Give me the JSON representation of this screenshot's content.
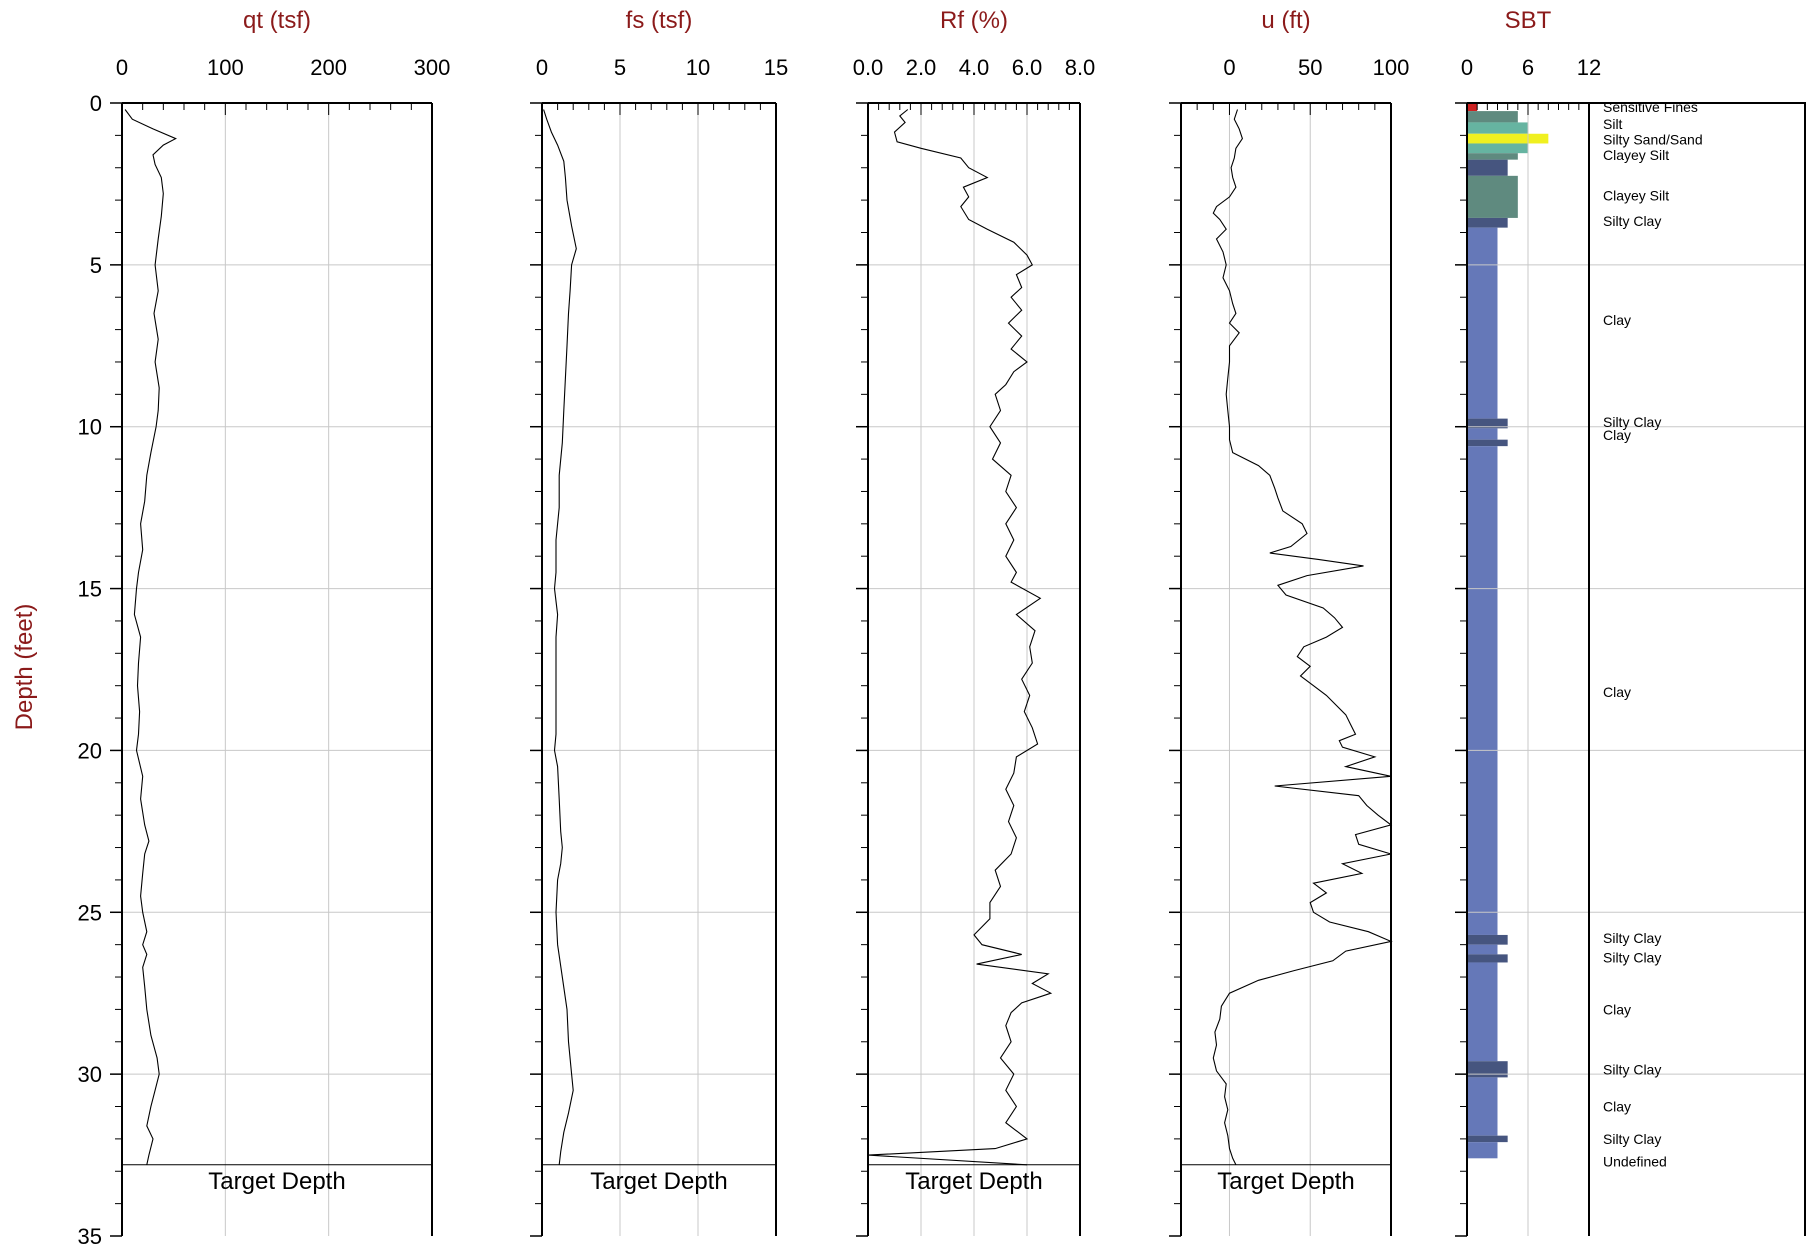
{
  "chart_data": {
    "type": "line",
    "ylabel": "Depth (feet)",
    "ylim": [
      0,
      35
    ],
    "yticks": [
      "0",
      "5",
      "10",
      "15",
      "20",
      "25",
      "30",
      "35"
    ],
    "target_depth": 32.8,
    "target_depth_label": "Target Depth",
    "grid": true,
    "tracks": [
      {
        "title": "qt (tsf)",
        "xlim": [
          0,
          300
        ],
        "xticks": [
          "0",
          "100",
          "200",
          "300"
        ],
        "series": [
          {
            "depth": [
              0.2,
              0.5,
              0.8,
              1.1,
              1.3,
              1.6,
              1.9,
              2.3,
              2.8,
              3.5,
              4.2,
              5.0,
              5.8,
              6.5,
              7.3,
              8.0,
              8.8,
              9.5,
              10.0,
              10.8,
              11.5,
              12.3,
              13.0,
              13.8,
              14.5,
              15.0,
              15.8,
              16.5,
              17.3,
              18.0,
              18.8,
              19.5,
              20.0,
              20.8,
              21.5,
              22.3,
              22.8,
              23.2,
              23.8,
              24.5,
              25.0,
              25.6,
              26.0,
              26.3,
              26.7,
              27.3,
              28.0,
              28.8,
              29.5,
              30.0,
              30.5,
              31.0,
              31.6,
              32.0,
              32.5,
              32.8
            ],
            "values": [
              3,
              10,
              30,
              52,
              40,
              30,
              32,
              38,
              40,
              38,
              35,
              32,
              35,
              31,
              35,
              32,
              36,
              35,
              33,
              28,
              24,
              22,
              18,
              20,
              16,
              14,
              12,
              18,
              16,
              15,
              17,
              16,
              14,
              20,
              18,
              22,
              26,
              22,
              20,
              18,
              20,
              24,
              20,
              24,
              20,
              22,
              24,
              28,
              34,
              36,
              32,
              28,
              24,
              30,
              26,
              24
            ]
          }
        ]
      },
      {
        "title": "fs (tsf)",
        "xlim": [
          0,
          15
        ],
        "xticks": [
          "0",
          "5",
          "10",
          "15"
        ],
        "series": [
          {
            "depth": [
              0.2,
              0.5,
              0.9,
              1.3,
              1.8,
              2.3,
              3.0,
              3.8,
              4.5,
              5.0,
              5.8,
              6.5,
              7.5,
              8.5,
              9.5,
              10.5,
              11.5,
              12.5,
              13.5,
              14.5,
              15.0,
              15.8,
              16.5,
              17.5,
              18.5,
              19.5,
              20.0,
              20.5,
              21.5,
              22.5,
              23.0,
              23.5,
              24.0,
              25.0,
              26.0,
              27.0,
              28.0,
              29.0,
              30.0,
              30.5,
              31.2,
              31.8,
              32.4,
              32.8
            ],
            "values": [
              0.1,
              0.3,
              0.6,
              1.0,
              1.4,
              1.5,
              1.6,
              1.9,
              2.2,
              1.9,
              1.8,
              1.7,
              1.6,
              1.5,
              1.4,
              1.3,
              1.1,
              1.1,
              0.9,
              0.9,
              0.8,
              1.0,
              0.9,
              0.9,
              0.9,
              0.9,
              0.8,
              1.0,
              1.1,
              1.2,
              1.3,
              1.2,
              1.0,
              0.9,
              1.0,
              1.3,
              1.6,
              1.7,
              1.9,
              2.0,
              1.7,
              1.4,
              1.2,
              1.1
            ]
          }
        ]
      },
      {
        "title": "Rf (%)",
        "xlim": [
          0,
          8
        ],
        "xticks": [
          "0.0",
          "2.0",
          "4.0",
          "6.0",
          "8.0"
        ],
        "series": [
          {
            "depth": [
              0.2,
              0.4,
              0.6,
              0.9,
              1.2,
              1.4,
              1.7,
              2.0,
              2.3,
              2.6,
              2.9,
              3.2,
              3.6,
              3.9,
              4.3,
              4.7,
              5.0,
              5.3,
              5.7,
              6.0,
              6.4,
              6.8,
              7.2,
              7.6,
              8.0,
              8.3,
              8.7,
              9.0,
              9.5,
              10.0,
              10.5,
              11.0,
              11.5,
              12.0,
              12.5,
              13.0,
              13.5,
              14.0,
              14.5,
              14.8,
              15.3,
              15.8,
              16.3,
              16.8,
              17.3,
              17.8,
              18.3,
              18.8,
              19.3,
              19.8,
              20.2,
              20.7,
              21.2,
              21.7,
              22.2,
              22.7,
              23.2,
              23.7,
              24.2,
              24.7,
              25.2,
              25.7,
              26.0,
              26.3,
              26.6,
              26.9,
              27.2,
              27.5,
              27.8,
              28.1,
              28.5,
              29.0,
              29.5,
              30.0,
              30.5,
              31.0,
              31.5,
              32.0,
              32.3,
              32.5,
              32.8
            ],
            "values": [
              1.5,
              1.2,
              1.4,
              1.0,
              1.1,
              2.0,
              3.5,
              3.8,
              4.5,
              3.6,
              3.8,
              3.5,
              3.8,
              4.5,
              5.5,
              6.0,
              6.2,
              5.6,
              5.8,
              5.4,
              5.8,
              5.3,
              5.8,
              5.4,
              6.0,
              5.5,
              5.2,
              4.8,
              5.0,
              4.6,
              5.0,
              4.7,
              5.4,
              5.2,
              5.6,
              5.2,
              5.5,
              5.2,
              5.6,
              5.4,
              6.5,
              5.6,
              6.3,
              6.1,
              6.2,
              5.8,
              6.1,
              5.9,
              6.2,
              6.4,
              5.6,
              5.5,
              5.2,
              5.5,
              5.3,
              5.6,
              5.4,
              4.8,
              5.0,
              4.6,
              4.6,
              4.0,
              4.3,
              5.8,
              4.1,
              6.8,
              6.2,
              6.9,
              5.8,
              5.4,
              5.2,
              5.4,
              5.0,
              5.5,
              5.2,
              5.6,
              5.2,
              6.0,
              4.8,
              0.0,
              6.0
            ]
          }
        ]
      },
      {
        "title": "u (ft)",
        "xlim": [
          -30,
          100
        ],
        "xticks": [
          "0",
          "50",
          "100"
        ],
        "series": [
          {
            "depth": [
              0.2,
              0.5,
              0.8,
              1.1,
              1.4,
              1.7,
              2.0,
              2.3,
              2.6,
              2.9,
              3.2,
              3.4,
              3.6,
              3.9,
              4.2,
              4.6,
              5.0,
              5.4,
              5.8,
              6.2,
              6.5,
              6.8,
              7.1,
              7.5,
              8.0,
              8.5,
              9.0,
              9.5,
              10.0,
              10.4,
              10.8,
              11.2,
              11.5,
              11.9,
              12.2,
              12.6,
              13.0,
              13.3,
              13.7,
              13.9,
              14.1,
              14.3,
              14.6,
              14.9,
              15.2,
              15.6,
              15.9,
              16.2,
              16.5,
              16.8,
              17.1,
              17.4,
              17.7,
              18.0,
              18.3,
              18.6,
              18.9,
              19.2,
              19.5,
              19.7,
              19.9,
              20.2,
              20.5,
              20.8,
              21.1,
              21.4,
              21.7,
              22.0,
              22.3,
              22.6,
              22.9,
              23.2,
              23.5,
              23.8,
              24.1,
              24.4,
              24.7,
              25.0,
              25.3,
              25.6,
              25.9,
              26.2,
              26.5,
              26.8,
              27.1,
              27.5,
              27.9,
              28.3,
              28.7,
              29.1,
              29.5,
              29.9,
              30.3,
              30.7,
              31.1,
              31.5,
              31.9,
              32.3,
              32.6,
              32.8
            ],
            "values": [
              5,
              3,
              6,
              8,
              4,
              3,
              1,
              2,
              4,
              0,
              -8,
              -10,
              -6,
              -2,
              -8,
              -4,
              -2,
              -4,
              0,
              2,
              4,
              0,
              6,
              0,
              0,
              -1,
              -2,
              -1,
              0,
              0,
              2,
              18,
              25,
              28,
              30,
              33,
              45,
              48,
              38,
              25,
              55,
              83,
              48,
              30,
              35,
              58,
              65,
              70,
              60,
              46,
              42,
              50,
              44,
              52,
              60,
              66,
              72,
              75,
              78,
              68,
              70,
              90,
              72,
              100,
              28,
              80,
              85,
              92,
              100,
              78,
              80,
              100,
              70,
              82,
              52,
              60,
              50,
              52,
              62,
              86,
              100,
              72,
              64,
              40,
              18,
              0,
              -5,
              -6,
              -9,
              -8,
              -10,
              -8,
              -2,
              -3,
              -1,
              -3,
              -1,
              0,
              2,
              4
            ]
          }
        ]
      }
    ],
    "sbt": {
      "title": "SBT",
      "xlim": [
        0,
        12
      ],
      "xticks": [
        "0",
        "6",
        "12"
      ],
      "layers": [
        {
          "top": 0.0,
          "bottom": 0.25,
          "value": 1,
          "color": "#cc2222",
          "label": "Sensitive Fines"
        },
        {
          "top": 0.25,
          "bottom": 0.6,
          "value": 5,
          "color": "#5f8a7f",
          "label": "Silt"
        },
        {
          "top": 0.6,
          "bottom": 0.95,
          "value": 6,
          "color": "#66b4a1",
          "label": "Silt"
        },
        {
          "top": 0.95,
          "bottom": 1.25,
          "value": 8,
          "color": "#f0f020",
          "label": "Silty Sand/Sand"
        },
        {
          "top": 1.25,
          "bottom": 1.55,
          "value": 6,
          "color": "#66b4a1",
          "label": "Silty Sand/Sand"
        },
        {
          "top": 1.55,
          "bottom": 1.75,
          "value": 5,
          "color": "#5f8a7f",
          "label": "Clayey Silt"
        },
        {
          "top": 1.75,
          "bottom": 2.25,
          "value": 4,
          "color": "#46557f",
          "label": "Silty Clay"
        },
        {
          "top": 2.25,
          "bottom": 3.55,
          "value": 5,
          "color": "#5f8a7f",
          "label": "Clayey Silt"
        },
        {
          "top": 3.55,
          "bottom": 3.85,
          "value": 4,
          "color": "#46557f",
          "label": "Silty Clay"
        },
        {
          "top": 3.85,
          "bottom": 9.75,
          "value": 3,
          "color": "#6578b8",
          "label": "Clay"
        },
        {
          "top": 9.75,
          "bottom": 10.05,
          "value": 4,
          "color": "#46557f",
          "label": "Silty Clay"
        },
        {
          "top": 10.05,
          "bottom": 10.4,
          "value": 3,
          "color": "#6578b8",
          "label": "Clay"
        },
        {
          "top": 10.4,
          "bottom": 10.6,
          "value": 4,
          "color": "#46557f",
          "label": "Silty Clay"
        },
        {
          "top": 10.6,
          "bottom": 25.7,
          "value": 3,
          "color": "#6578b8",
          "label": "Clay"
        },
        {
          "top": 25.7,
          "bottom": 26.0,
          "value": 4,
          "color": "#46557f",
          "label": "Silty Clay"
        },
        {
          "top": 26.0,
          "bottom": 26.3,
          "value": 3,
          "color": "#6578b8",
          "label": "Clay"
        },
        {
          "top": 26.3,
          "bottom": 26.55,
          "value": 4,
          "color": "#46557f",
          "label": "Silty Clay"
        },
        {
          "top": 26.55,
          "bottom": 29.6,
          "value": 3,
          "color": "#6578b8",
          "label": "Clay"
        },
        {
          "top": 29.6,
          "bottom": 30.1,
          "value": 4,
          "color": "#46557f",
          "label": "Silty Clay"
        },
        {
          "top": 30.1,
          "bottom": 31.9,
          "value": 3,
          "color": "#6578b8",
          "label": "Clay"
        },
        {
          "top": 31.9,
          "bottom": 32.1,
          "value": 4,
          "color": "#46557f",
          "label": "Silty Clay"
        },
        {
          "top": 32.1,
          "bottom": 32.6,
          "value": 3,
          "color": "#6578b8",
          "label": "Clay"
        }
      ],
      "labels": [
        {
          "text": "Sensitive Fines",
          "depth": 0.12
        },
        {
          "text": "Silt",
          "depth": 0.65
        },
        {
          "text": "Silty Sand/Sand",
          "depth": 1.12
        },
        {
          "text": "Clayey Silt",
          "depth": 1.6
        },
        {
          "text": "Clayey Silt",
          "depth": 2.85
        },
        {
          "text": "Silty Clay",
          "depth": 3.65
        },
        {
          "text": "Clay",
          "depth": 6.7
        },
        {
          "text": "Silty Clay",
          "depth": 9.85
        },
        {
          "text": "Clay",
          "depth": 10.25
        },
        {
          "text": "Clay",
          "depth": 18.2
        },
        {
          "text": "Silty Clay",
          "depth": 25.8
        },
        {
          "text": "Silty Clay",
          "depth": 26.4
        },
        {
          "text": "Clay",
          "depth": 28.0
        },
        {
          "text": "Silty Clay",
          "depth": 29.85
        },
        {
          "text": "Clay",
          "depth": 31.0
        },
        {
          "text": "Silty Clay",
          "depth": 32.0
        },
        {
          "text": "Undefined",
          "depth": 32.7
        }
      ]
    }
  }
}
